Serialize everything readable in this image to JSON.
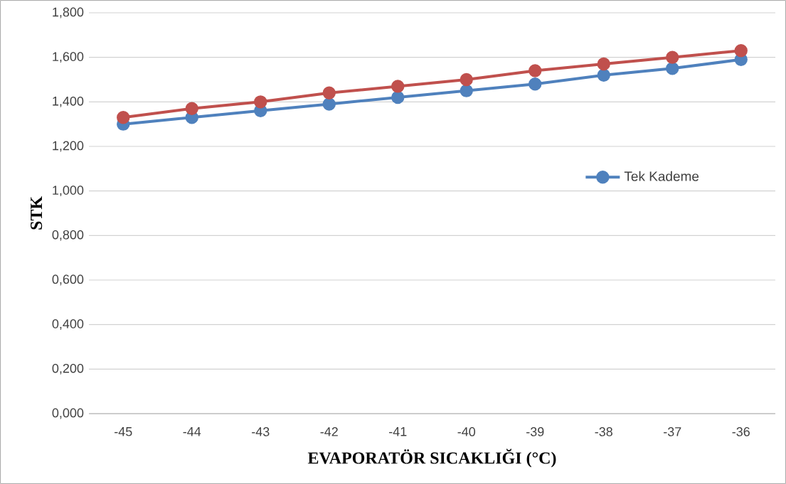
{
  "chart_data": {
    "type": "line",
    "xlabel": "EVAPORATÖR SICAKLIĞI (°C)",
    "ylabel": "STK",
    "categories": [
      "-45",
      "-44",
      "-43",
      "-42",
      "-41",
      "-40",
      "-39",
      "-38",
      "-37",
      "-36"
    ],
    "series": [
      {
        "name": "Tek Kademe",
        "color": "#4f81bd",
        "values": [
          1.3,
          1.33,
          1.36,
          1.39,
          1.42,
          1.45,
          1.48,
          1.52,
          1.55,
          1.59
        ]
      },
      {
        "color": "#c0504d",
        "values": [
          1.33,
          1.37,
          1.4,
          1.44,
          1.47,
          1.5,
          1.54,
          1.57,
          1.6,
          1.63
        ]
      }
    ],
    "ylim": [
      0,
      1.8
    ],
    "yticks": [
      {
        "value": 0,
        "label": "0,000"
      },
      {
        "value": 0.2,
        "label": "0,200"
      },
      {
        "value": 0.4,
        "label": "0,400"
      },
      {
        "value": 0.6,
        "label": "0,600"
      },
      {
        "value": 0.8,
        "label": "0,800"
      },
      {
        "value": 1.0,
        "label": "1,000"
      },
      {
        "value": 1.2,
        "label": "1,200"
      },
      {
        "value": 1.4,
        "label": "1,400"
      },
      {
        "value": 1.6,
        "label": "1,600"
      },
      {
        "value": 1.8,
        "label": "1,800"
      }
    ],
    "grid": "y",
    "legend": "right",
    "marker": "circle",
    "line_style": "solid"
  }
}
